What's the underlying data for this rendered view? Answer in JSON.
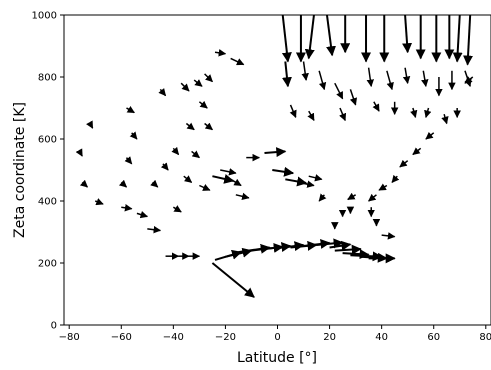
{
  "chart_data": {
    "type": "quiver",
    "title": "",
    "xlabel": "Latitude [°]",
    "ylabel": "Zeta coordinate [K]",
    "xlim": [
      -82,
      82
    ],
    "ylim": [
      0,
      1000
    ],
    "xticks": [
      -80,
      -60,
      -40,
      -20,
      0,
      20,
      40,
      60,
      80
    ],
    "yticks": [
      0,
      200,
      400,
      600,
      800,
      1000
    ],
    "grid": false,
    "legend": "none",
    "arrow_color": "#000000",
    "series": [
      {
        "arrows": [
          {
            "x": -25,
            "y": 200,
            "u": 16,
            "v": -110
          },
          {
            "x": -24,
            "y": 210,
            "u": 10,
            "v": 25
          },
          {
            "x": -20,
            "y": 220,
            "u": 10,
            "v": 20
          },
          {
            "x": -15,
            "y": 235,
            "u": 12,
            "v": 15
          },
          {
            "x": -10,
            "y": 240,
            "u": 12,
            "v": 12
          },
          {
            "x": -5,
            "y": 245,
            "u": 10,
            "v": 10
          },
          {
            "x": 0,
            "y": 248,
            "u": 10,
            "v": 10
          },
          {
            "x": 5,
            "y": 250,
            "u": 10,
            "v": 8
          },
          {
            "x": 10,
            "y": 255,
            "u": 10,
            "v": 10
          },
          {
            "x": 15,
            "y": 258,
            "u": 10,
            "v": 8
          },
          {
            "x": 20,
            "y": 250,
            "u": 8,
            "v": 10
          },
          {
            "x": 22,
            "y": 240,
            "u": 10,
            "v": 5
          },
          {
            "x": 25,
            "y": 232,
            "u": 10,
            "v": -5
          },
          {
            "x": 28,
            "y": 225,
            "u": 12,
            "v": -5
          },
          {
            "x": 32,
            "y": 220,
            "u": 10,
            "v": -5
          },
          {
            "x": 35,
            "y": 215,
            "u": 10,
            "v": 0
          },
          {
            "x": 38,
            "y": 215,
            "u": 7,
            "v": 0
          },
          {
            "x": -43,
            "y": 222,
            "u": 5,
            "v": 0
          },
          {
            "x": -38,
            "y": 222,
            "u": 4,
            "v": 0
          },
          {
            "x": -34,
            "y": 222,
            "u": 4,
            "v": 0
          },
          {
            "x": 2,
            "y": 1000,
            "u": 2,
            "v": -150
          },
          {
            "x": 9,
            "y": 1000,
            "u": 0,
            "v": -150
          },
          {
            "x": 14,
            "y": 1000,
            "u": -2,
            "v": -140
          },
          {
            "x": 19,
            "y": 1000,
            "u": 2,
            "v": -130
          },
          {
            "x": 26,
            "y": 1000,
            "u": 0,
            "v": -120
          },
          {
            "x": 34,
            "y": 1000,
            "u": 0,
            "v": -150
          },
          {
            "x": 41,
            "y": 1000,
            "u": 0,
            "v": -150
          },
          {
            "x": 49,
            "y": 1000,
            "u": 1,
            "v": -120
          },
          {
            "x": 55,
            "y": 1000,
            "u": 0,
            "v": -140
          },
          {
            "x": 61,
            "y": 1000,
            "u": 0,
            "v": -150
          },
          {
            "x": 66,
            "y": 1000,
            "u": 0,
            "v": -140
          },
          {
            "x": 70,
            "y": 1000,
            "u": -1,
            "v": -150
          },
          {
            "x": 74,
            "y": 1000,
            "u": -1,
            "v": -160
          },
          {
            "x": 3,
            "y": 850,
            "u": 1,
            "v": -80
          },
          {
            "x": 10,
            "y": 850,
            "u": 1,
            "v": -60
          },
          {
            "x": 16,
            "y": 820,
            "u": 2,
            "v": -60
          },
          {
            "x": 22,
            "y": 780,
            "u": 3,
            "v": -50
          },
          {
            "x": 28,
            "y": 760,
            "u": 2,
            "v": -50
          },
          {
            "x": 35,
            "y": 830,
            "u": 1,
            "v": -60
          },
          {
            "x": 42,
            "y": 820,
            "u": 2,
            "v": -60
          },
          {
            "x": 49,
            "y": 830,
            "u": 1,
            "v": -50
          },
          {
            "x": 56,
            "y": 820,
            "u": 1,
            "v": -50
          },
          {
            "x": 62,
            "y": 800,
            "u": 0,
            "v": -60
          },
          {
            "x": 67,
            "y": 820,
            "u": 0,
            "v": -60
          },
          {
            "x": 72,
            "y": 820,
            "u": 2,
            "v": -50
          },
          {
            "x": 75,
            "y": 800,
            "u": -3,
            "v": -20
          },
          {
            "x": 5,
            "y": 710,
            "u": 2,
            "v": -40
          },
          {
            "x": 12,
            "y": 690,
            "u": 2,
            "v": -30
          },
          {
            "x": 24,
            "y": 700,
            "u": 2,
            "v": -40
          },
          {
            "x": 37,
            "y": 720,
            "u": 2,
            "v": -30
          },
          {
            "x": 45,
            "y": 720,
            "u": 0,
            "v": -40
          },
          {
            "x": 52,
            "y": 700,
            "u": 1,
            "v": -30
          },
          {
            "x": 58,
            "y": 700,
            "u": -1,
            "v": -30
          },
          {
            "x": 64,
            "y": 680,
            "u": 1,
            "v": -30
          },
          {
            "x": 69,
            "y": 700,
            "u": 0,
            "v": -30
          },
          {
            "x": 60,
            "y": 620,
            "u": -3,
            "v": -20
          },
          {
            "x": 55,
            "y": 570,
            "u": -3,
            "v": -20
          },
          {
            "x": 50,
            "y": 530,
            "u": -3,
            "v": -20
          },
          {
            "x": 46,
            "y": 480,
            "u": -2,
            "v": -20
          },
          {
            "x": 42,
            "y": 450,
            "u": -3,
            "v": -15
          },
          {
            "x": 38,
            "y": 420,
            "u": -3,
            "v": -20
          },
          {
            "x": 36,
            "y": 380,
            "u": 0,
            "v": -30
          },
          {
            "x": 38,
            "y": 340,
            "u": 0,
            "v": -20
          },
          {
            "x": 40,
            "y": 290,
            "u": 5,
            "v": -5
          },
          {
            "x": 30,
            "y": 420,
            "u": -3,
            "v": -15
          },
          {
            "x": 28,
            "y": 380,
            "u": 0,
            "v": -20
          },
          {
            "x": 25,
            "y": 370,
            "u": 0,
            "v": -20
          },
          {
            "x": 22,
            "y": 330,
            "u": 0,
            "v": -20
          },
          {
            "x": 18,
            "y": 420,
            "u": -2,
            "v": -20
          },
          {
            "x": -25,
            "y": 480,
            "u": 8,
            "v": -15
          },
          {
            "x": -22,
            "y": 500,
            "u": 6,
            "v": -10
          },
          {
            "x": -18,
            "y": 470,
            "u": 4,
            "v": -20
          },
          {
            "x": -16,
            "y": 420,
            "u": 5,
            "v": -10
          },
          {
            "x": -12,
            "y": 540,
            "u": 5,
            "v": 0
          },
          {
            "x": -5,
            "y": 555,
            "u": 8,
            "v": 5
          },
          {
            "x": -2,
            "y": 500,
            "u": 8,
            "v": -10
          },
          {
            "x": 3,
            "y": 470,
            "u": 8,
            "v": -12
          },
          {
            "x": 8,
            "y": 460,
            "u": 6,
            "v": -10
          },
          {
            "x": 12,
            "y": 480,
            "u": 5,
            "v": -10
          },
          {
            "x": -45,
            "y": 760,
            "u": 2,
            "v": -20
          },
          {
            "x": -37,
            "y": 780,
            "u": 3,
            "v": -25
          },
          {
            "x": -32,
            "y": 790,
            "u": 3,
            "v": -20
          },
          {
            "x": -28,
            "y": 810,
            "u": 3,
            "v": -25
          },
          {
            "x": -24,
            "y": 880,
            "u": 4,
            "v": -5
          },
          {
            "x": -18,
            "y": 860,
            "u": 5,
            "v": -20
          },
          {
            "x": -30,
            "y": 720,
            "u": 3,
            "v": -20
          },
          {
            "x": -35,
            "y": 650,
            "u": 3,
            "v": -20
          },
          {
            "x": -40,
            "y": 570,
            "u": 2,
            "v": -20
          },
          {
            "x": -44,
            "y": 520,
            "u": 2,
            "v": -20
          },
          {
            "x": -48,
            "y": 460,
            "u": 2,
            "v": -15
          },
          {
            "x": -28,
            "y": 650,
            "u": 3,
            "v": -20
          },
          {
            "x": -33,
            "y": 560,
            "u": 3,
            "v": -20
          },
          {
            "x": -36,
            "y": 480,
            "u": 3,
            "v": -20
          },
          {
            "x": -30,
            "y": 450,
            "u": 4,
            "v": -15
          },
          {
            "x": -40,
            "y": 380,
            "u": 3,
            "v": -15
          },
          {
            "x": -58,
            "y": 700,
            "u": 3,
            "v": -15
          },
          {
            "x": -56,
            "y": 620,
            "u": 2,
            "v": -20
          },
          {
            "x": -58,
            "y": 540,
            "u": 2,
            "v": -20
          },
          {
            "x": -60,
            "y": 460,
            "u": 2,
            "v": -15
          },
          {
            "x": -54,
            "y": 360,
            "u": 4,
            "v": -10
          },
          {
            "x": -50,
            "y": 310,
            "u": 5,
            "v": -5
          },
          {
            "x": -72,
            "y": 650,
            "u": 1,
            "v": -15
          },
          {
            "x": -76,
            "y": 560,
            "u": 1,
            "v": -15
          },
          {
            "x": -75,
            "y": 460,
            "u": 2,
            "v": -15
          },
          {
            "x": -70,
            "y": 400,
            "u": 3,
            "v": -10
          },
          {
            "x": -60,
            "y": 380,
            "u": 4,
            "v": -5
          }
        ]
      }
    ]
  }
}
